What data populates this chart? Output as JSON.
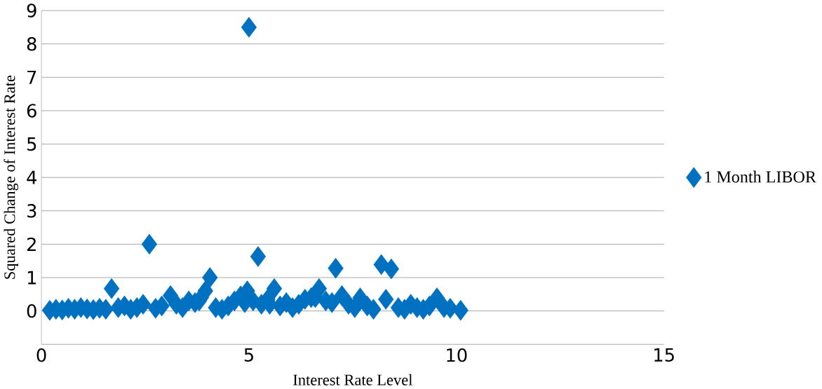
{
  "chart_data": {
    "type": "scatter",
    "xlabel": "Interest Rate Level",
    "ylabel": "Squared Change  of Interest Rate",
    "xlim": [
      0,
      15
    ],
    "ylim": [
      -1,
      9
    ],
    "xticks": [
      0,
      5,
      10,
      15
    ],
    "yticks": [
      {
        "value": -1,
        "label": null
      },
      0,
      1,
      2,
      3,
      4,
      5,
      6,
      7,
      8,
      9
    ],
    "grid": "y",
    "legend": "right",
    "marker": "diamond",
    "series": [
      {
        "name": "1 Month LIBOR",
        "color": "#0070c0",
        "x": [
          5.0,
          2.6,
          5.22,
          7.09,
          8.19,
          8.43,
          1.69,
          4.06,
          5.61,
          6.69,
          3.11,
          4.96,
          7.24,
          7.68,
          9.53,
          8.3,
          0.2,
          0.35,
          0.5,
          0.65,
          0.8,
          0.95,
          1.1,
          1.25,
          1.4,
          1.55,
          1.85,
          2.0,
          2.15,
          2.3,
          2.45,
          2.75,
          2.9,
          3.25,
          3.4,
          3.55,
          3.7,
          3.85,
          3.95,
          4.2,
          4.35,
          4.5,
          4.65,
          4.8,
          5.1,
          5.3,
          5.45,
          5.75,
          5.9,
          6.05,
          6.2,
          6.35,
          6.5,
          6.85,
          7.0,
          7.4,
          7.55,
          7.85,
          8.0,
          8.6,
          8.75,
          8.9,
          9.05,
          9.2,
          9.35,
          9.7,
          9.85,
          10.1,
          3.8,
          5.5,
          6.6,
          4.9
        ],
        "values": [
          8.5,
          2.0,
          1.63,
          1.28,
          1.39,
          1.26,
          0.67,
          1.0,
          0.67,
          0.67,
          0.46,
          0.6,
          0.46,
          0.39,
          0.39,
          0.35,
          0.02,
          0.05,
          0.03,
          0.08,
          0.05,
          0.1,
          0.06,
          0.04,
          0.08,
          0.05,
          0.1,
          0.15,
          0.05,
          0.1,
          0.2,
          0.08,
          0.15,
          0.2,
          0.1,
          0.3,
          0.25,
          0.4,
          0.6,
          0.1,
          0.05,
          0.15,
          0.3,
          0.45,
          0.3,
          0.2,
          0.35,
          0.15,
          0.25,
          0.1,
          0.2,
          0.35,
          0.4,
          0.3,
          0.25,
          0.2,
          0.1,
          0.15,
          0.05,
          0.1,
          0.05,
          0.2,
          0.1,
          0.05,
          0.15,
          0.1,
          0.08,
          0.02,
          0.3,
          0.2,
          0.4,
          0.25
        ]
      }
    ]
  }
}
